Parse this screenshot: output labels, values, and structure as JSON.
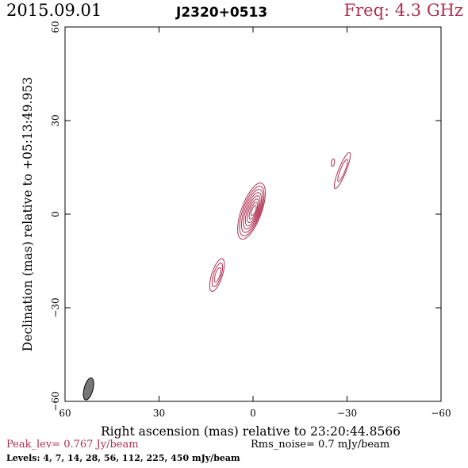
{
  "header": {
    "date": "2015.09.01",
    "source": "J2320+0513",
    "freq": "Freq: 4.3 GHz"
  },
  "colors": {
    "contour": "#b03050",
    "beam_fill": "#777777",
    "axis": "#000000"
  },
  "chart_data": {
    "type": "contour",
    "xlabel": "Right ascension (mas) relative to 23:20:44.8566",
    "ylabel": "Declination (mas) relative to +05:13:49.953",
    "xlim": [
      60,
      -60
    ],
    "ylim": [
      -60,
      60
    ],
    "xticks": [
      60,
      30,
      0,
      -30,
      -60
    ],
    "yticks": [
      -60,
      -30,
      0,
      30,
      60
    ],
    "x_tick_labels": [
      "60",
      "30",
      "0",
      "−30",
      "−60"
    ],
    "y_tick_labels": [
      "−60",
      "−30",
      "0",
      "30",
      "60"
    ],
    "components": [
      {
        "x": 0.5,
        "y": 1.0,
        "semi_major": 9.5,
        "semi_minor": 3.2,
        "pa_deg": 20,
        "n_levels": 8
      },
      {
        "x": -28.5,
        "y": 14.0,
        "semi_major": 6.2,
        "semi_minor": 1.2,
        "pa_deg": 22,
        "n_levels": 2
      },
      {
        "x": -25.5,
        "y": 16.5,
        "semi_major": 1.2,
        "semi_minor": 0.5,
        "pa_deg": 10,
        "n_levels": 1
      },
      {
        "x": 11.5,
        "y": -19.5,
        "semi_major": 5.5,
        "semi_minor": 1.7,
        "pa_deg": 18,
        "n_levels": 3
      }
    ],
    "beam": {
      "x": 52.5,
      "y": -56,
      "semi_major": 2.8,
      "semi_minor": 1.0,
      "pa_deg": 15
    },
    "peak_level": "Peak_lev=  0.767 Jy/beam",
    "rms_noise": "Rms_noise=   0.7  mJy/beam",
    "levels": "Levels:   4,   7,  14,  28,  56, 112, 225, 450 mJy/beam"
  }
}
